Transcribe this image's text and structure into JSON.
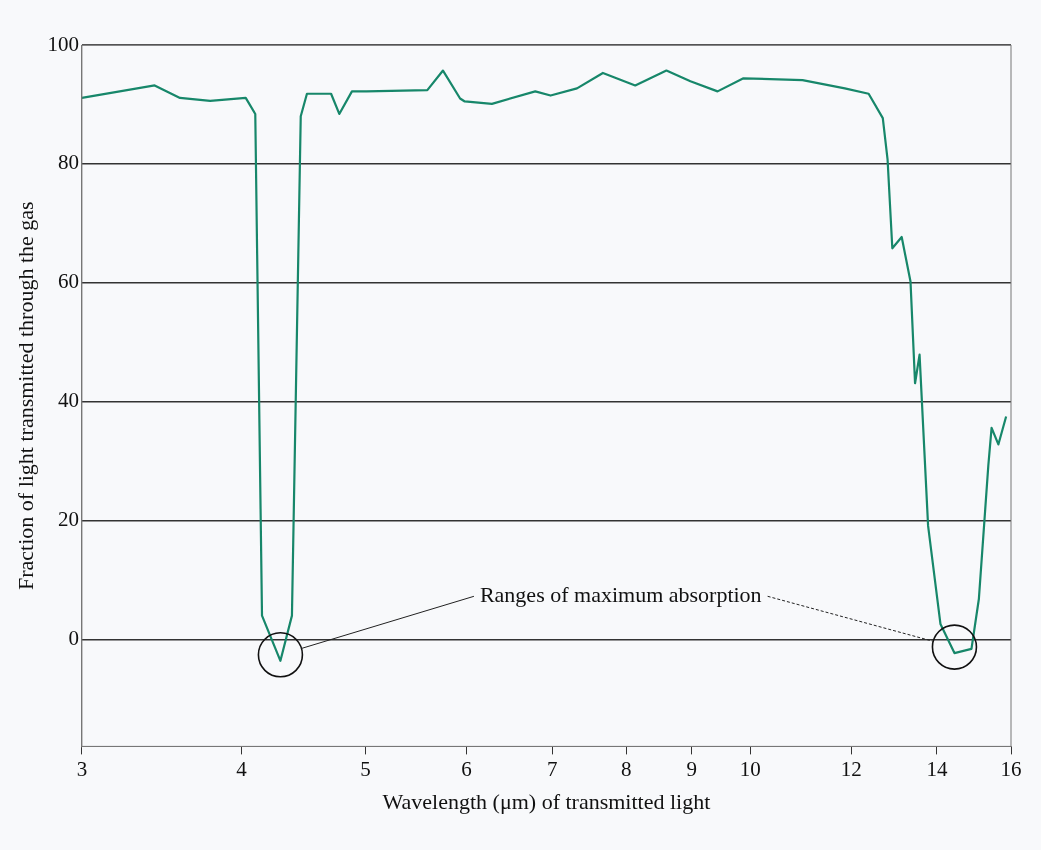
{
  "chart_data": {
    "type": "line",
    "xlabel": "Wavelength (μm) of transmitted light",
    "ylabel": "Fraction of light transmitted through the gas",
    "x": [
      3,
      3.42,
      3.58,
      3.78,
      4.03,
      4.1,
      4.15,
      4.29,
      4.38,
      4.45,
      4.5,
      4.7,
      4.77,
      4.88,
      5.01,
      5.59,
      5.75,
      5.93,
      5.98,
      6.28,
      6.79,
      6.98,
      7.32,
      7.67,
      8.13,
      8.6,
      8.98,
      9.43,
      9.88,
      10.99,
      11.86,
      12.38,
      12.7,
      12.81,
      12.92,
      13.14,
      13.35,
      13.46,
      13.57,
      13.78,
      14.09,
      14.45,
      14.9,
      15.1,
      15.36,
      15.45,
      15.64,
      15.86
    ],
    "series": [
      {
        "color": "#17876a",
        "values": [
          91.1,
          93.2,
          91.1,
          90.6,
          91.1,
          88.4,
          4,
          -3.6,
          4,
          88,
          91.8,
          91.8,
          88.4,
          92.2,
          92.2,
          92.4,
          95.7,
          91.0,
          90.5,
          90.1,
          92.2,
          91.5,
          92.7,
          95.3,
          93.2,
          95.7,
          93.9,
          92.2,
          94.4,
          94.1,
          92.7,
          91.8,
          87.7,
          80.7,
          65.8,
          67.7,
          60.2,
          43.1,
          47.9,
          19.1,
          2.6,
          -2.3,
          -1.6,
          6.8,
          29.3,
          35.6,
          32.8,
          37.5
        ]
      }
    ],
    "xlim": [
      3,
      16
    ],
    "xticks": [
      3,
      4,
      5,
      6,
      7,
      8,
      9,
      10,
      12,
      14,
      16
    ],
    "ylim": [
      -18,
      100
    ],
    "yticks": [
      0,
      20,
      40,
      60,
      80,
      100
    ],
    "grid": "y",
    "log": "x",
    "marker": "none",
    "line_style": "solid",
    "annotations": [
      "Ranges of maximum absorption"
    ]
  }
}
